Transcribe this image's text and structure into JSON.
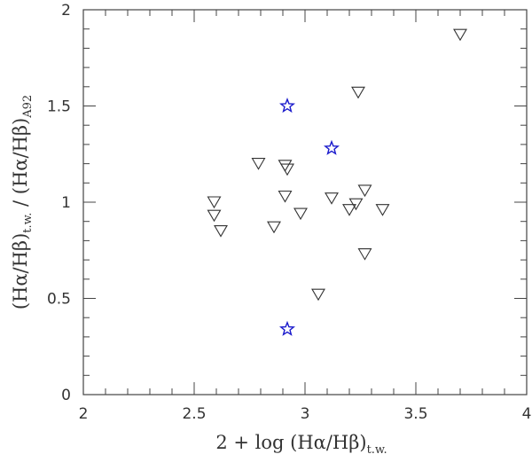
{
  "chart_data": {
    "type": "scatter",
    "xlim": [
      2,
      4
    ],
    "ylim": [
      0,
      2
    ],
    "xticks": [
      "2",
      "2.5",
      "3",
      "3.5",
      "4"
    ],
    "yticks": [
      "0",
      "0.5",
      "1",
      "1.5",
      "2"
    ],
    "xticks_values": [
      2,
      2.5,
      3,
      3.5,
      4
    ],
    "yticks_values": [
      0,
      0.5,
      1,
      1.5,
      2
    ],
    "x_minor_step": 0.1,
    "y_minor_step": 0.1,
    "grid": false,
    "xlabel": {
      "main": "2  +  log (Hα/Hβ)",
      "sub": "t.w."
    },
    "ylabel": {
      "part1": "(Hα/Hβ)",
      "sub1": "t.w.",
      "mid": "  /  (Hα/Hβ)",
      "sub2": "A92"
    },
    "series": [
      {
        "marker": "triangle-down",
        "color": "#333333",
        "points": [
          [
            2.59,
            1.0
          ],
          [
            2.59,
            0.93
          ],
          [
            2.62,
            0.85
          ],
          [
            2.79,
            1.2
          ],
          [
            2.86,
            0.87
          ],
          [
            2.91,
            1.19
          ],
          [
            2.92,
            1.17
          ],
          [
            2.91,
            1.03
          ],
          [
            2.98,
            0.94
          ],
          [
            3.06,
            0.52
          ],
          [
            3.12,
            1.02
          ],
          [
            3.2,
            0.96
          ],
          [
            3.23,
            0.99
          ],
          [
            3.24,
            1.57
          ],
          [
            3.27,
            1.06
          ],
          [
            3.27,
            0.73
          ],
          [
            3.35,
            0.96
          ],
          [
            3.7,
            1.87
          ]
        ]
      },
      {
        "marker": "star",
        "color": "#1a1acc",
        "points": [
          [
            2.92,
            1.5
          ],
          [
            3.12,
            1.28
          ],
          [
            2.92,
            0.34
          ]
        ]
      }
    ]
  }
}
